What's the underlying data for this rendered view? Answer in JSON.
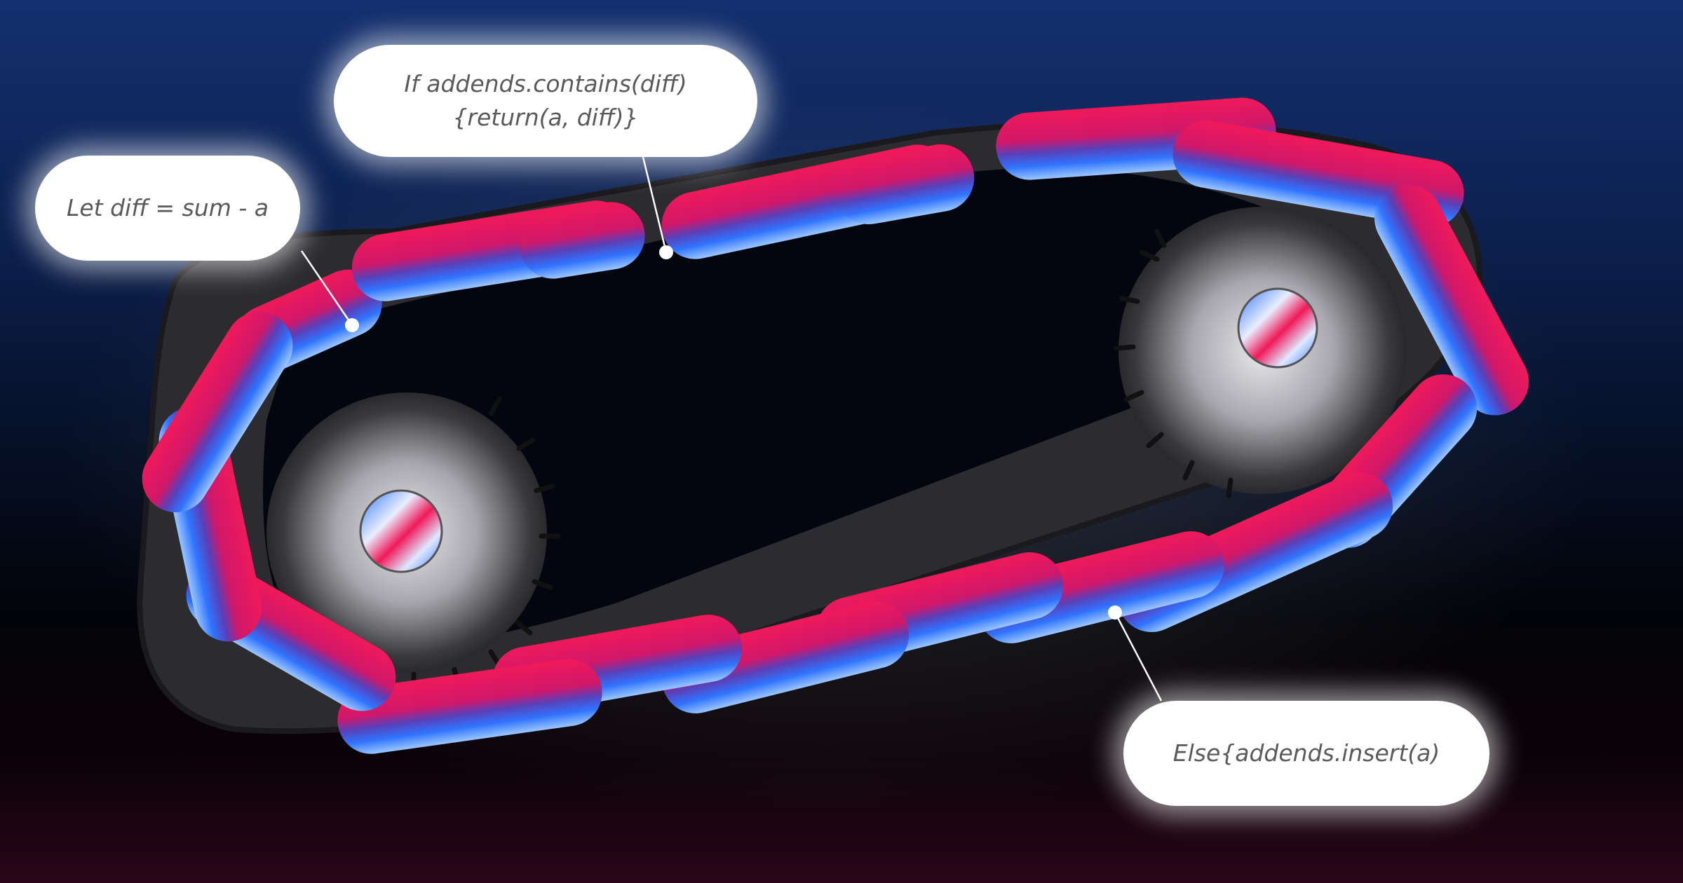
{
  "annotations": [
    {
      "text": "Let diff = sum - a"
    },
    {
      "text": "If addends.contains(diff)\n{return(a, diff)}"
    },
    {
      "text": "Else{addends.insert(a)"
    }
  ],
  "colors": {
    "background_top": "#13306f",
    "background_bottom": "#020308",
    "link_pink": "#f0195a",
    "link_blue": "#2f74ff",
    "gear_metal": "#b8b8bc",
    "callout_bg": "#ffffff",
    "callout_text": "#5a5a5a"
  },
  "illustration": {
    "subject": "chain-loop-over-two-gears",
    "icons": [
      "chain-link-icon",
      "gear-icon"
    ]
  }
}
